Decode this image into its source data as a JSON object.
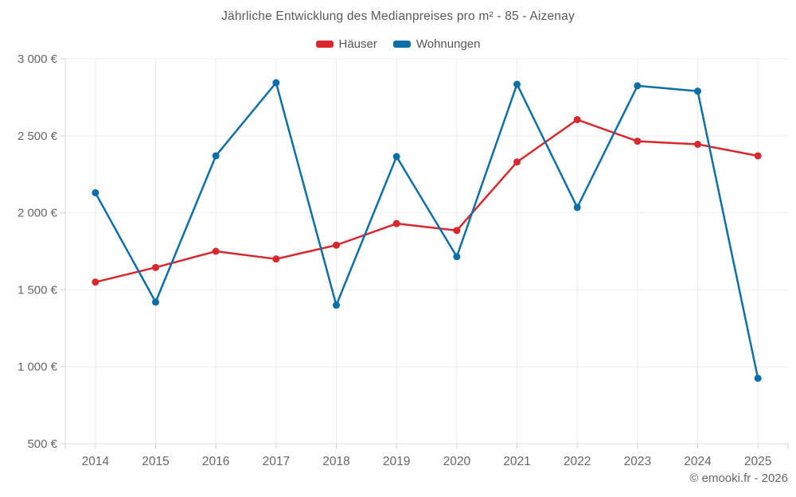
{
  "chart_data": {
    "type": "line",
    "title": "Jährliche Entwicklung des Medianpreises pro m² - 85 - Aizenay",
    "x": [
      2014,
      2015,
      2016,
      2017,
      2018,
      2019,
      2020,
      2021,
      2022,
      2023,
      2024,
      2025
    ],
    "series": [
      {
        "name": "Häuser",
        "color": "#d7282d",
        "values": [
          1550,
          1645,
          1750,
          1700,
          1790,
          1930,
          1885,
          2330,
          2605,
          2465,
          2445,
          2370
        ]
      },
      {
        "name": "Wohnungen",
        "color": "#0d6fa8",
        "values": [
          2130,
          1420,
          2370,
          2845,
          1400,
          2365,
          1715,
          2835,
          2035,
          2825,
          2790,
          925
        ]
      }
    ],
    "ylim": [
      500,
      3000
    ],
    "ytick_step": 500,
    "ytick_suffix": "€",
    "xlabel": "",
    "ylabel": "",
    "grid": true,
    "legend_position": "top-center",
    "marker": "circle"
  },
  "footer": {
    "attribution": "© emooki.fr - 2026"
  },
  "colors": {
    "grid": "#ececec",
    "axis": "#dcdcdc",
    "tick": "#cfcfcf",
    "axis_label": "#666666",
    "title_text": "#595959",
    "legend_text": "#555555",
    "background": "#ffffff"
  }
}
